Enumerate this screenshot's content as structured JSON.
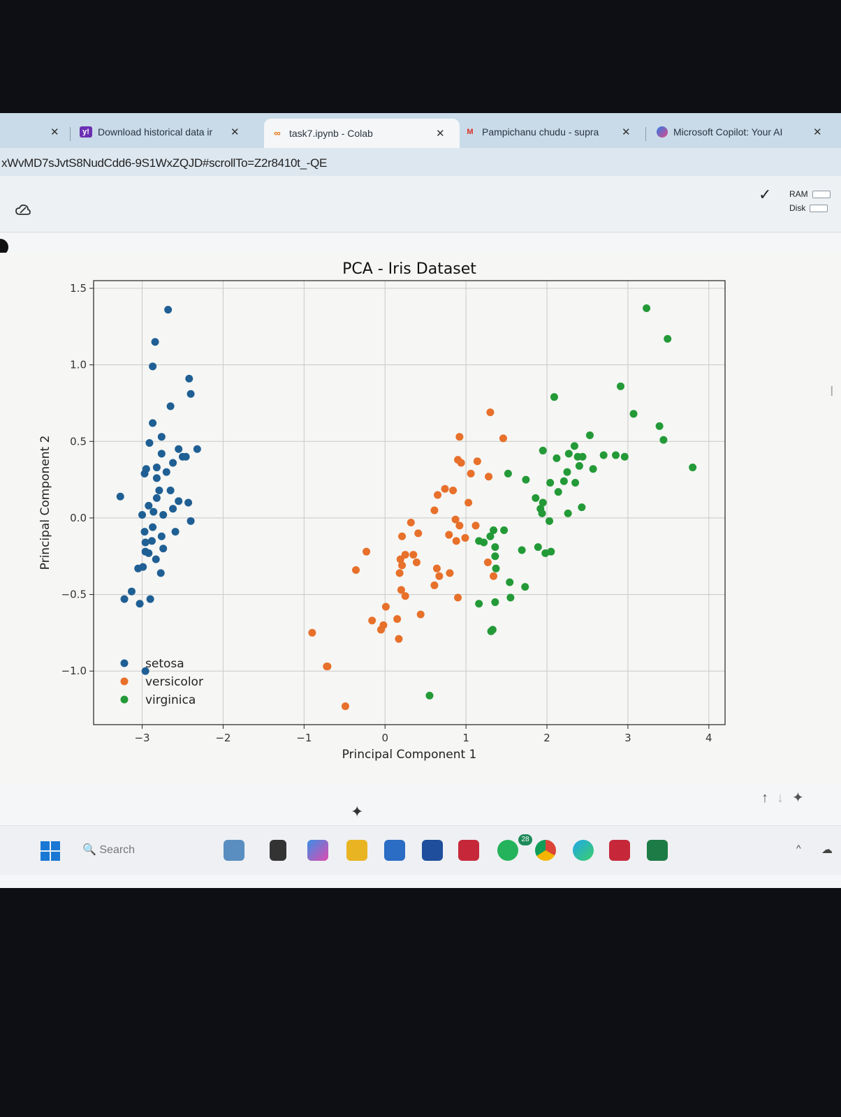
{
  "browser": {
    "tabs": [
      {
        "label": "",
        "icon": "close-icon"
      },
      {
        "label": "Download historical data ir",
        "icon": "yahoo-icon"
      },
      {
        "label": "task7.ipynb - Colab",
        "icon": "colab-icon",
        "active": true
      },
      {
        "label": "Pampichanu chudu - supra",
        "icon": "gmail-icon"
      },
      {
        "label": "Microsoft Copilot: Your AI",
        "icon": "copilot-icon"
      }
    ],
    "url": "xWvMD7sJvtS8NudCdd6-9S1WxZQJD#scrollTo=Z2r8410t_-QE"
  },
  "colab": {
    "ram_label": "RAM",
    "disk_label": "Disk"
  },
  "chart_data": {
    "type": "scatter",
    "title": "PCA - Iris Dataset",
    "xlabel": "Principal Component 1",
    "ylabel": "Principal Component 2",
    "xlim": [
      -3.6,
      4.2
    ],
    "ylim": [
      -1.35,
      1.55
    ],
    "xticks": [
      "-3",
      "-2",
      "-1",
      "0",
      "1",
      "2",
      "3",
      "4"
    ],
    "yticks": [
      "1.5",
      "1.0",
      "0.5",
      "0.0",
      "-0.5",
      "-1.0"
    ],
    "grid": true,
    "legend_position": "lower-left",
    "series": [
      {
        "name": "setosa",
        "color": "#1f5f94",
        "points": [
          [
            -2.68,
            1.36
          ],
          [
            -2.87,
            0.99
          ],
          [
            -2.84,
            1.15
          ],
          [
            -2.65,
            0.73
          ],
          [
            -2.42,
            0.91
          ],
          [
            -2.4,
            0.81
          ],
          [
            -2.87,
            0.62
          ],
          [
            -2.76,
            0.53
          ],
          [
            -2.91,
            0.49
          ],
          [
            -2.76,
            0.42
          ],
          [
            -2.62,
            0.36
          ],
          [
            -2.82,
            0.33
          ],
          [
            -2.7,
            0.3
          ],
          [
            -2.55,
            0.45
          ],
          [
            -2.32,
            0.45
          ],
          [
            -2.5,
            0.4
          ],
          [
            -2.46,
            0.4
          ],
          [
            -2.95,
            0.32
          ],
          [
            -2.82,
            0.26
          ],
          [
            -2.97,
            0.29
          ],
          [
            -2.79,
            0.18
          ],
          [
            -2.65,
            0.18
          ],
          [
            -2.55,
            0.11
          ],
          [
            -2.82,
            0.13
          ],
          [
            -3.27,
            0.14
          ],
          [
            -2.43,
            0.1
          ],
          [
            -2.92,
            0.08
          ],
          [
            -2.62,
            0.06
          ],
          [
            -2.86,
            0.04
          ],
          [
            -2.74,
            0.02
          ],
          [
            -3.0,
            0.02
          ],
          [
            -2.87,
            -0.06
          ],
          [
            -2.4,
            -0.02
          ],
          [
            -2.59,
            -0.09
          ],
          [
            -2.97,
            -0.09
          ],
          [
            -2.76,
            -0.12
          ],
          [
            -2.88,
            -0.15
          ],
          [
            -2.96,
            -0.16
          ],
          [
            -2.74,
            -0.2
          ],
          [
            -2.92,
            -0.23
          ],
          [
            -2.83,
            -0.27
          ],
          [
            -2.99,
            -0.32
          ],
          [
            -3.05,
            -0.33
          ],
          [
            -2.96,
            -0.22
          ],
          [
            -2.77,
            -0.36
          ],
          [
            -3.13,
            -0.48
          ],
          [
            -3.22,
            -0.53
          ],
          [
            -3.03,
            -0.56
          ],
          [
            -2.96,
            -1.0
          ],
          [
            -2.9,
            -0.53
          ]
        ]
      },
      {
        "name": "versicolor",
        "color": "#e7702a",
        "points": [
          [
            1.3,
            0.69
          ],
          [
            0.92,
            0.53
          ],
          [
            1.46,
            0.52
          ],
          [
            0.9,
            0.38
          ],
          [
            1.14,
            0.37
          ],
          [
            0.94,
            0.36
          ],
          [
            1.06,
            0.29
          ],
          [
            1.28,
            0.27
          ],
          [
            0.74,
            0.19
          ],
          [
            0.65,
            0.15
          ],
          [
            0.84,
            0.18
          ],
          [
            1.03,
            0.1
          ],
          [
            0.61,
            0.05
          ],
          [
            0.32,
            -0.03
          ],
          [
            0.87,
            -0.01
          ],
          [
            1.12,
            -0.05
          ],
          [
            0.92,
            -0.05
          ],
          [
            0.41,
            -0.1
          ],
          [
            0.79,
            -0.11
          ],
          [
            0.88,
            -0.15
          ],
          [
            0.99,
            -0.13
          ],
          [
            0.21,
            -0.12
          ],
          [
            0.35,
            -0.24
          ],
          [
            -0.23,
            -0.22
          ],
          [
            0.25,
            -0.24
          ],
          [
            0.19,
            -0.27
          ],
          [
            0.39,
            -0.29
          ],
          [
            1.27,
            -0.29
          ],
          [
            0.21,
            -0.31
          ],
          [
            0.64,
            -0.33
          ],
          [
            0.67,
            -0.38
          ],
          [
            0.8,
            -0.36
          ],
          [
            0.18,
            -0.36
          ],
          [
            -0.36,
            -0.34
          ],
          [
            1.34,
            -0.38
          ],
          [
            0.61,
            -0.44
          ],
          [
            0.2,
            -0.47
          ],
          [
            0.9,
            -0.52
          ],
          [
            0.25,
            -0.51
          ],
          [
            0.01,
            -0.58
          ],
          [
            0.44,
            -0.63
          ],
          [
            -0.16,
            -0.67
          ],
          [
            0.15,
            -0.66
          ],
          [
            -0.02,
            -0.7
          ],
          [
            -0.05,
            -0.73
          ],
          [
            0.17,
            -0.79
          ],
          [
            -0.9,
            -0.75
          ],
          [
            -0.72,
            -0.97
          ],
          [
            -0.71,
            -0.97
          ],
          [
            -0.49,
            -1.23
          ]
        ]
      },
      {
        "name": "virginica",
        "color": "#239a37",
        "points": [
          [
            3.23,
            1.37
          ],
          [
            3.49,
            1.17
          ],
          [
            2.91,
            0.86
          ],
          [
            2.09,
            0.79
          ],
          [
            3.07,
            0.68
          ],
          [
            3.39,
            0.6
          ],
          [
            3.44,
            0.51
          ],
          [
            2.53,
            0.54
          ],
          [
            3.8,
            0.33
          ],
          [
            2.34,
            0.47
          ],
          [
            2.7,
            0.41
          ],
          [
            2.38,
            0.4
          ],
          [
            2.44,
            0.4
          ],
          [
            2.85,
            0.41
          ],
          [
            2.96,
            0.4
          ],
          [
            1.95,
            0.44
          ],
          [
            2.12,
            0.39
          ],
          [
            2.27,
            0.42
          ],
          [
            2.4,
            0.34
          ],
          [
            2.25,
            0.3
          ],
          [
            2.57,
            0.32
          ],
          [
            2.21,
            0.24
          ],
          [
            2.35,
            0.23
          ],
          [
            1.52,
            0.29
          ],
          [
            1.74,
            0.25
          ],
          [
            2.04,
            0.23
          ],
          [
            2.14,
            0.17
          ],
          [
            1.86,
            0.13
          ],
          [
            1.92,
            0.06
          ],
          [
            1.95,
            0.1
          ],
          [
            1.94,
            0.03
          ],
          [
            2.03,
            -0.02
          ],
          [
            2.26,
            0.03
          ],
          [
            2.43,
            0.07
          ],
          [
            1.34,
            -0.08
          ],
          [
            1.47,
            -0.08
          ],
          [
            1.3,
            -0.12
          ],
          [
            1.22,
            -0.16
          ],
          [
            1.16,
            -0.15
          ],
          [
            1.36,
            -0.19
          ],
          [
            1.69,
            -0.21
          ],
          [
            1.89,
            -0.19
          ],
          [
            2.05,
            -0.22
          ],
          [
            1.98,
            -0.23
          ],
          [
            1.36,
            -0.25
          ],
          [
            1.37,
            -0.33
          ],
          [
            1.54,
            -0.42
          ],
          [
            1.73,
            -0.45
          ],
          [
            1.55,
            -0.52
          ],
          [
            1.36,
            -0.55
          ],
          [
            1.16,
            -0.56
          ],
          [
            1.33,
            -0.73
          ],
          [
            1.31,
            -0.74
          ],
          [
            0.55,
            -1.16
          ]
        ]
      }
    ]
  }
}
